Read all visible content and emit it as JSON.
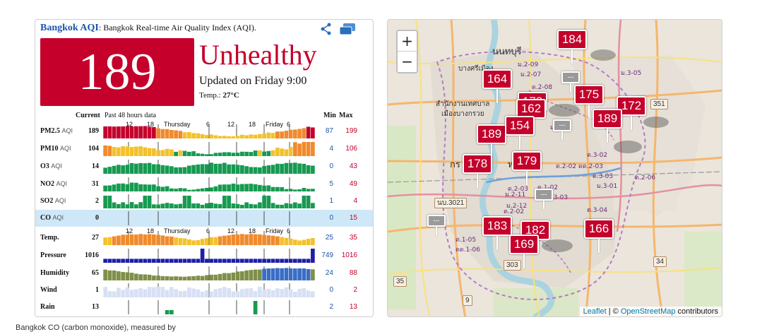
{
  "header": {
    "city": "Bangkok AQI",
    "subtitle": ": Bangkok Real-time Air Quality Index (AQI).",
    "share_icon": "share-icon",
    "window_icon": "windows-icon"
  },
  "summary": {
    "aqi": "189",
    "level": "Unhealthy",
    "updated": "Updated on Friday 9:00",
    "temp_label": "Temp.: ",
    "temp_value": "27°C",
    "aqi_color": "#c4002b"
  },
  "columns": {
    "current": "Current",
    "past": "Past 48 hours data",
    "min": "Min",
    "max": "Max"
  },
  "time_axis_top": [
    "12",
    "18",
    "Thursday",
    "6",
    "12",
    "18",
    "Friday",
    "6"
  ],
  "time_axis_bottom": [
    "12",
    "18",
    "Thursday",
    "6",
    "12",
    "18",
    "Friday",
    "6"
  ],
  "rows": [
    {
      "name": "PM2.5",
      "unit": "AQI",
      "current": "189",
      "min": "87",
      "max": "199",
      "kind": "pm25"
    },
    {
      "name": "PM10",
      "unit": "AQI",
      "current": "104",
      "min": "4",
      "max": "106",
      "kind": "pm10"
    },
    {
      "name": "O3",
      "unit": "AQI",
      "current": "14",
      "min": "0",
      "max": "43",
      "kind": "o3"
    },
    {
      "name": "NO2",
      "unit": "AQI",
      "current": "31",
      "min": "5",
      "max": "49",
      "kind": "no2"
    },
    {
      "name": "SO2",
      "unit": "AQI",
      "current": "2",
      "min": "1",
      "max": "4",
      "kind": "so2"
    },
    {
      "name": "CO",
      "unit": "AQI",
      "current": "0",
      "min": "0",
      "max": "15",
      "kind": "co"
    },
    {
      "name": "Temp.",
      "unit": "",
      "current": "27",
      "min": "25",
      "max": "35",
      "kind": "temp"
    },
    {
      "name": "Pressure",
      "unit": "",
      "current": "1016",
      "min": "749",
      "max": "1016",
      "kind": "pressure"
    },
    {
      "name": "Humidity",
      "unit": "",
      "current": "65",
      "min": "24",
      "max": "88",
      "kind": "humidity"
    },
    {
      "name": "Wind",
      "unit": "",
      "current": "1",
      "min": "0",
      "max": "2",
      "kind": "wind"
    },
    {
      "name": "Rain",
      "unit": "",
      "current": "13",
      "min": "2",
      "max": "13",
      "kind": "rain"
    }
  ],
  "map": {
    "zoom_in": "+",
    "zoom_out": "−",
    "attribution_leaflet": "Leaflet",
    "attribution_sep": " | © ",
    "attribution_osm": "OpenStreetMap",
    "attribution_tail": " contributors",
    "markers": [
      "184",
      "164",
      "175",
      "178",
      "162",
      "172",
      "189",
      "154",
      "189",
      "178",
      "179",
      "183",
      "182",
      "169",
      "166"
    ],
    "labels": {
      "nonthaburi": "นนทบุรี",
      "bangkruai": "บางศรีเมือง",
      "office1": "สำนักงานเทศบาล",
      "office2": "เมืองบางกรวย",
      "krung": "กร",
      "thonburi": "ทานค",
      "r3021": "นบ.3021",
      "r351": "351",
      "r303": "303",
      "r35": "35",
      "r34": "34",
      "r9": "9"
    },
    "station_codes": [
      "ม.2-09",
      "ม.2-07",
      "ม.3-05",
      "ด.2-08",
      "ม.2-03",
      "ต.3-02",
      "ด.2-02",
      "ดด.2-03",
      "ด.3-03",
      "ม.3-01",
      "ด.2-06",
      "ด.2-03",
      "ม.2-11",
      "ด.1-02",
      "ม.2-12",
      "ต.2-02",
      "ต.3-04",
      "ต.1-05",
      "ดด.1-06",
      "ต.3-03"
    ]
  },
  "footer": {
    "text": "Bangkok CO (carbon monoxide), measured by"
  }
}
